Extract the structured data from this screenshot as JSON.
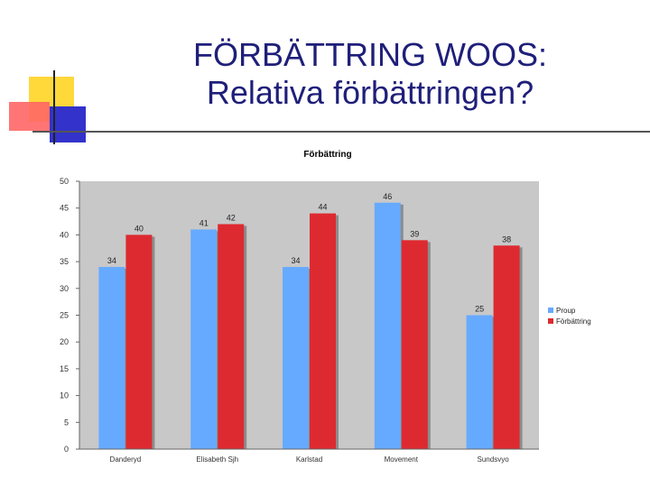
{
  "slide": {
    "title_line1": "FÖRBÄTTRING WOOS:",
    "title_line2": "Relativa förbättringen?"
  },
  "colors": {
    "title": "#1f1f7a",
    "plot_background": "#c8c8c8",
    "series_blue": "#66aaff",
    "series_red": "#dd2a30",
    "deco_yellow": "#ffd83a",
    "deco_blue": "#3333cc",
    "deco_red": "#ff6666"
  },
  "chart_data": {
    "type": "bar",
    "title": "Förbättring",
    "xlabel": "",
    "ylabel": "",
    "ylim": [
      0,
      50
    ],
    "yticks": [
      0,
      5,
      10,
      15,
      20,
      25,
      30,
      35,
      40,
      45,
      50
    ],
    "grid": false,
    "legend_position": "right",
    "categories": [
      "Danderyd",
      "Elisabeth Sjh",
      "Karlstad",
      "Movement",
      "Sundsvyo"
    ],
    "series": [
      {
        "name": "Proup",
        "color": "#66aaff",
        "values": [
          34,
          41,
          34,
          46,
          25
        ]
      },
      {
        "name": "Förbättring",
        "color": "#dd2a30",
        "values": [
          40,
          42,
          44,
          39,
          38
        ]
      }
    ]
  }
}
